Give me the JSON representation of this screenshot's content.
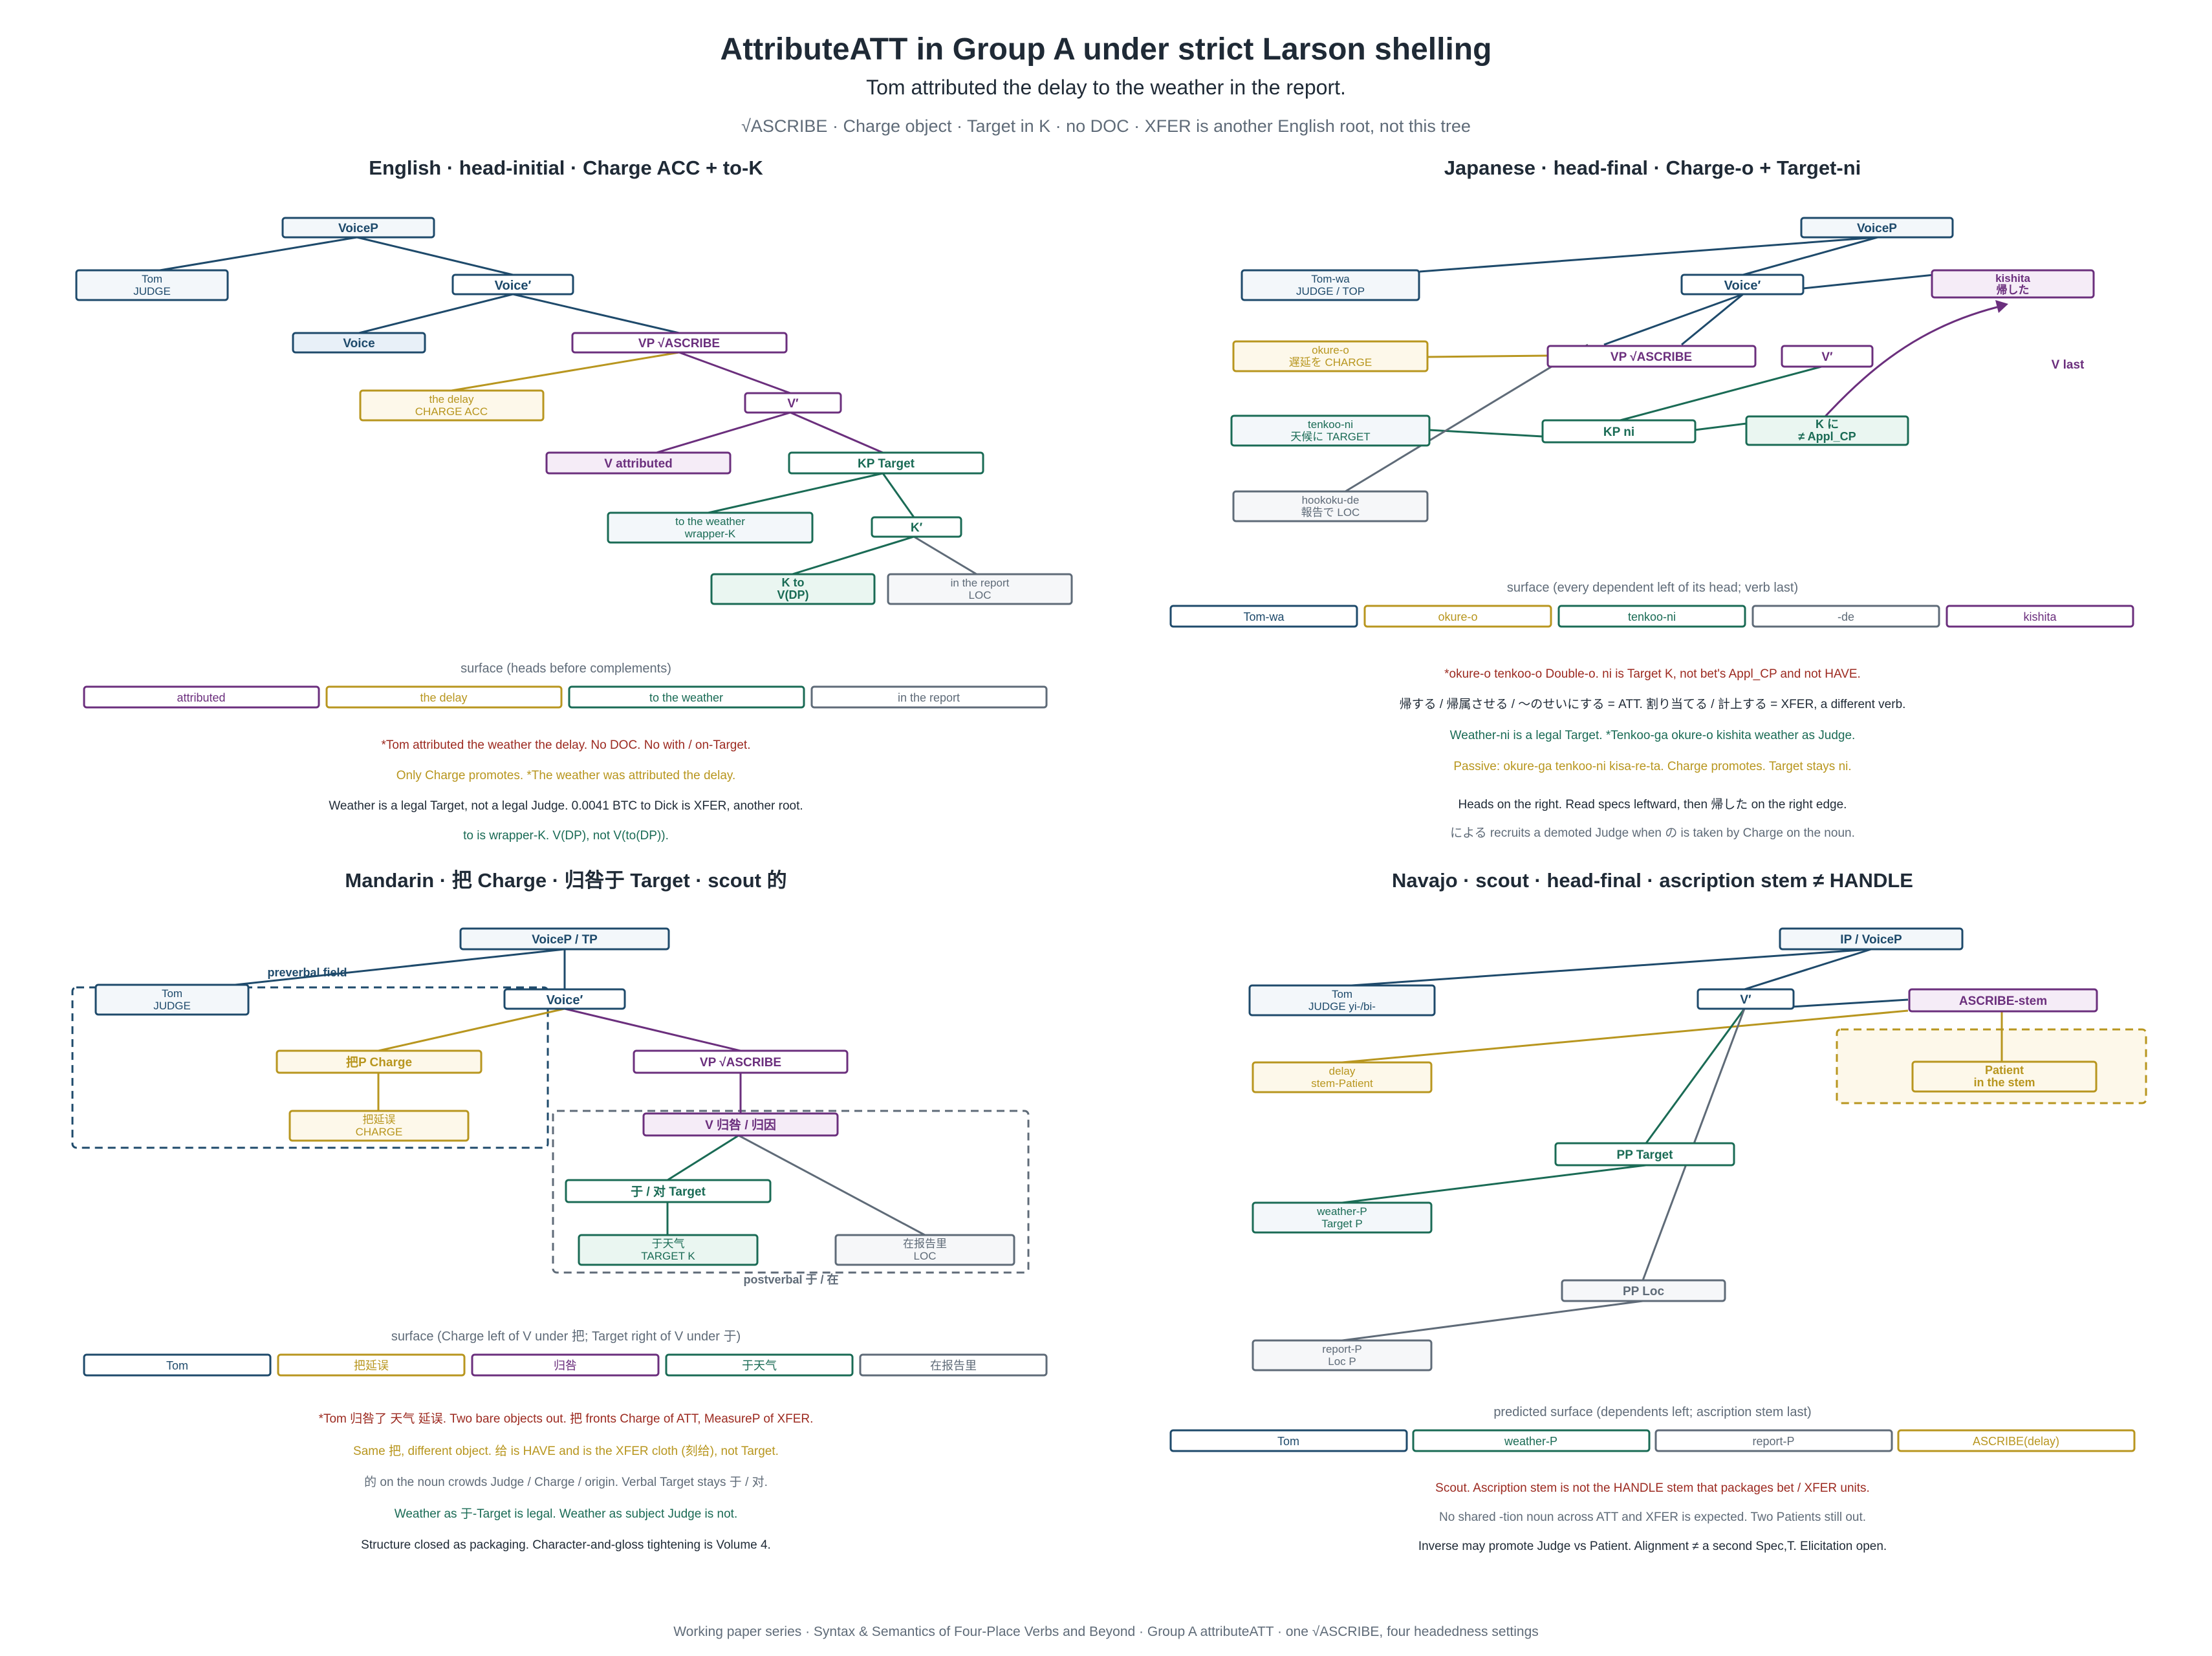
{
  "colors": {
    "navy": "#1e4a6b",
    "gold": "#b8961f",
    "purple": "#6b2f7d",
    "green": "#1a6b55",
    "gray": "#5f6b78",
    "red": "#9c2a20",
    "ink": "#1f2a36",
    "fill_navy": "#f3f7fa",
    "fill_gold": "#fdf8ea",
    "fill_purple": "#f5ecf7",
    "fill_green": "#eaf6f1",
    "fill_gray": "#f6f7f9",
    "fill_voice": "#e8f0f8"
  },
  "header": {
    "title": "AttributeATT in Group A under strict Larson shelling",
    "subtitle": "Tom attributed the delay to the weather in the report.",
    "tagline": "√ASCRIBE  ·  Charge object  ·  Target in K  ·  no DOC  ·  XFER is another English root, not this tree"
  },
  "panels": {
    "english": {
      "heading": "English  ·  head-initial  ·  Charge ACC + to-K",
      "nodes": {
        "voicep": "VoiceP",
        "tom1": "Tom",
        "tom2": "JUDGE",
        "voicebar": "Voice′",
        "voice": "Voice",
        "vp": "VP √ASCRIBE",
        "delay1": "the delay",
        "delay2": "CHARGE ACC",
        "vbar": "V′",
        "v": "V attributed",
        "kp": "KP Target",
        "weather1": "to the weather",
        "weather2": "wrapper-K",
        "kbar": "K′",
        "kto1": "K to",
        "kto2": "V(DP)",
        "report1": "in the report",
        "report2": "LOC"
      },
      "surface_label": "surface  (heads before complements)",
      "surface": [
        "attributed",
        "the delay",
        "to the weather",
        "in the report"
      ],
      "notes": [
        "*Tom attributed the weather the delay.  No DOC.  No with / on-Target.",
        "Only Charge promotes.  *The weather was attributed the delay.",
        "Weather is a legal Target, not a legal Judge.  0.0041 BTC to Dick is XFER, another root.",
        "to is wrapper-K.  V(DP), not V(to(DP))."
      ]
    },
    "japanese": {
      "heading": "Japanese  ·  head-final  ·  Charge-o + Target-ni",
      "nodes": {
        "voicep": "VoiceP",
        "tom1": "Tom-wa",
        "tom2": "JUDGE / TOP",
        "voicebar": "Voice′",
        "kishita1": "kishita",
        "kishita2": "帰した",
        "okure1": "okure-o",
        "okure2": "遅延を CHARGE",
        "vp": "VP √ASCRIBE",
        "vbar": "V′",
        "vlast": "V last",
        "tenkoo1": "tenkoo-ni",
        "tenkoo2": "天候に TARGET",
        "kp": "KP ni",
        "k1": "K に",
        "k2": "≠ Appl_CP",
        "hookoku1": "hookoku-de",
        "hookoku2": "報告で LOC"
      },
      "surface_label": "surface  (every dependent left of its head; verb last)",
      "surface": [
        "Tom-wa",
        "okure-o",
        "tenkoo-ni",
        "-de",
        "kishita"
      ],
      "notes": [
        "*okure-o tenkoo-o  Double-o.  ni is Target K, not bet's Appl_CP and not HAVE.",
        "帰する / 帰属させる / ～のせいにする = ATT.  割り当てる / 計上する = XFER, a different verb.",
        "Weather-ni is a legal Target.  *Tenkoo-ga okure-o kishita  weather as Judge.",
        "Passive: okure-ga tenkoo-ni kisa-re-ta.  Charge promotes.  Target stays ni.",
        "Heads on the right.  Read specs leftward, then 帰した on the right edge.",
        "による recruits a demoted Judge when の is taken by Charge on the noun."
      ]
    },
    "mandarin": {
      "heading": "Mandarin  ·  把 Charge  ·  归咎于 Target  ·  scout 的",
      "nodes": {
        "voicep": "VoiceP / TP",
        "preverbal": "preverbal field",
        "tom1": "Tom",
        "tom2": "JUDGE",
        "voicebar": "Voice′",
        "ba": "把P Charge",
        "bayanwu1": "把延误",
        "bayanwu2": "CHARGE",
        "vp": "VP √ASCRIBE",
        "v": "V 归咎 / 归因",
        "yu": "于 / 对 Target",
        "tianqi1": "于天气",
        "tianqi2": "TARGET K",
        "baogao1": "在报告里",
        "baogao2": "LOC",
        "postverbal": "postverbal 于 / 在"
      },
      "surface_label": "surface  (Charge left of V under 把; Target right of V under 于)",
      "surface": [
        "Tom",
        "把延误",
        "归咎",
        "于天气",
        "在报告里"
      ],
      "notes": [
        "*Tom 归咎了 天气 延误.  Two bare objects out.  把 fronts Charge of ATT, MeasureP of XFER.",
        "Same 把, different object.  给 is HAVE and is the XFER cloth (刻给), not Target.",
        "的 on the noun crowds Judge / Charge / origin.  Verbal Target stays 于 / 对.",
        "Weather as 于-Target is legal.  Weather as subject Judge is not.",
        "Structure closed as packaging.  Character-and-gloss tightening is Volume 4."
      ]
    },
    "navajo": {
      "heading": "Navajo  ·  scout  ·  head-final  ·  ascription stem ≠ HANDLE",
      "nodes": {
        "ip": "IP / VoiceP",
        "tom1": "Tom",
        "tom2": "JUDGE  yi-/bi-",
        "vbar": "V′",
        "stem": "ASCRIBE-stem",
        "delay1": "delay",
        "delay2": "stem-Patient",
        "patient1": "Patient",
        "patient2": "in the stem",
        "pp": "PP Target",
        "weather1": "weather-P",
        "weather2": "Target P",
        "ppl": "PP Loc",
        "report1": "report-P",
        "report2": "Loc P"
      },
      "surface_label": "predicted surface  (dependents left; ascription stem last)",
      "surface": [
        "Tom",
        "weather-P",
        "report-P",
        "ASCRIBE(delay)"
      ],
      "notes": [
        "Scout.  Ascription stem is not the HANDLE stem that packages bet / XFER units.",
        "No shared -tion noun across ATT and XFER is expected.  Two Patients still out.",
        "Inverse may promote Judge vs Patient.  Alignment ≠ a second Spec,T.  Elicitation open."
      ]
    }
  },
  "footer": "Working paper series  ·  Syntax & Semantics of Four-Place Verbs and Beyond  ·  Group A attributeATT  ·  one √ASCRIBE, four headedness settings"
}
